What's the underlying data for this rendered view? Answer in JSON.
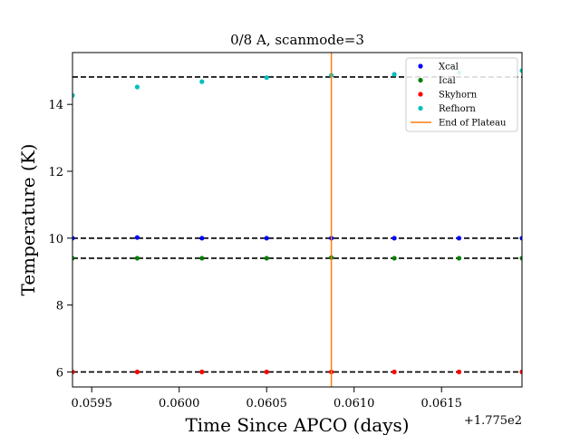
{
  "chart_data": {
    "type": "scatter",
    "title": "0/8 A, scanmode=3",
    "xlabel": "Time Since APCO (days)",
    "ylabel": "Temperature (K)",
    "x_offset_label": "+1.775e2",
    "xlim": [
      0.05939,
      0.06196
    ],
    "ylim": [
      5.55,
      15.55
    ],
    "xticks": [
      0.0595,
      0.06,
      0.0605,
      0.061,
      0.0615
    ],
    "xtick_labels": [
      "0.0595",
      "0.0600",
      "0.0605",
      "0.0610",
      "0.0615"
    ],
    "yticks": [
      6,
      8,
      10,
      12,
      14
    ],
    "ytick_labels": [
      "6",
      "8",
      "10",
      "12",
      "14"
    ],
    "grid": false,
    "legend_position": "top-right",
    "x": [
      0.05939,
      0.05976,
      0.06013,
      0.0605,
      0.06087,
      0.06123,
      0.0616,
      0.06196
    ],
    "series": [
      {
        "name": "Xcal",
        "color": "#0000ff",
        "marker": "dot",
        "values": [
          10.0,
          10.02,
          10.0,
          10.0,
          10.0,
          10.0,
          10.0,
          10.0
        ]
      },
      {
        "name": "Ical",
        "color": "#008000",
        "marker": "dot",
        "values": [
          9.4,
          9.4,
          9.4,
          9.4,
          9.42,
          9.4,
          9.4,
          9.4
        ]
      },
      {
        "name": "Skyhorn",
        "color": "#ff0000",
        "marker": "dot",
        "values": [
          6.0,
          6.0,
          6.0,
          6.0,
          6.0,
          6.0,
          6.0,
          6.0
        ]
      },
      {
        "name": "Refhorn",
        "color": "#00bfbf",
        "marker": "dot",
        "values": [
          14.27,
          14.52,
          14.68,
          14.8,
          14.87,
          14.9,
          14.95,
          15.01
        ]
      }
    ],
    "reference_lines": [
      {
        "type": "horizontal",
        "y": 14.82,
        "style": "dashed",
        "color": "#000000"
      },
      {
        "type": "horizontal",
        "y": 10.0,
        "style": "dashed",
        "color": "#000000"
      },
      {
        "type": "horizontal",
        "y": 9.4,
        "style": "dashed",
        "color": "#000000"
      },
      {
        "type": "horizontal",
        "y": 6.0,
        "style": "dashed",
        "color": "#000000"
      },
      {
        "type": "vertical",
        "x": 0.06087,
        "label": "End of Plateau",
        "color": "#ff7f0e",
        "style": "solid"
      }
    ],
    "legend": [
      {
        "label": "Xcal",
        "color": "#0000ff",
        "kind": "dot"
      },
      {
        "label": "Ical",
        "color": "#008000",
        "kind": "dot"
      },
      {
        "label": "Skyhorn",
        "color": "#ff0000",
        "kind": "dot"
      },
      {
        "label": "Refhorn",
        "color": "#00bfbf",
        "kind": "dot"
      },
      {
        "label": "End of Plateau",
        "color": "#ff7f0e",
        "kind": "line"
      }
    ]
  }
}
